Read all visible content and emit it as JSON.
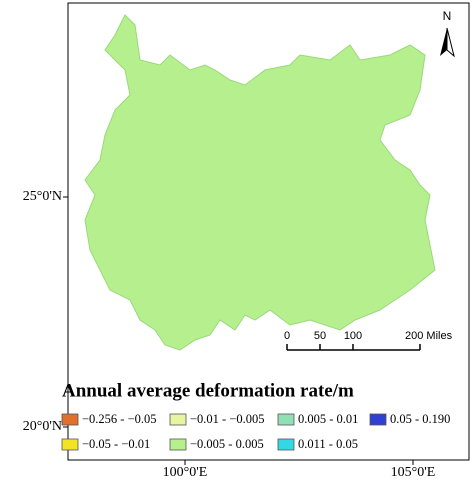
{
  "map": {
    "lat_labels": [
      "25°0'N",
      "20°0'N"
    ],
    "lon_labels": [
      "100°0'E",
      "105°0'E"
    ],
    "north": "N",
    "scale_bar": {
      "labels": [
        "0",
        "50",
        "100",
        "200 Miles"
      ]
    },
    "legend": {
      "title": "Annual average deformation rate/m",
      "items": [
        {
          "label": "−0.256 - −0.05",
          "color": "#e0702a"
        },
        {
          "label": "−0.01 - −0.005",
          "color": "#e6f5a0"
        },
        {
          "label": "0.005 - 0.01",
          "color": "#8fe0b4"
        },
        {
          "label": "0.05 - 0.190",
          "color": "#3040d0"
        },
        {
          "label": "−0.05 - −0.01",
          "color": "#f2e424"
        },
        {
          "label": "−0.005 - 0.005",
          "color": "#b6f08e"
        },
        {
          "label": "0.011 - 0.05",
          "color": "#34d8e4"
        }
      ]
    }
  }
}
